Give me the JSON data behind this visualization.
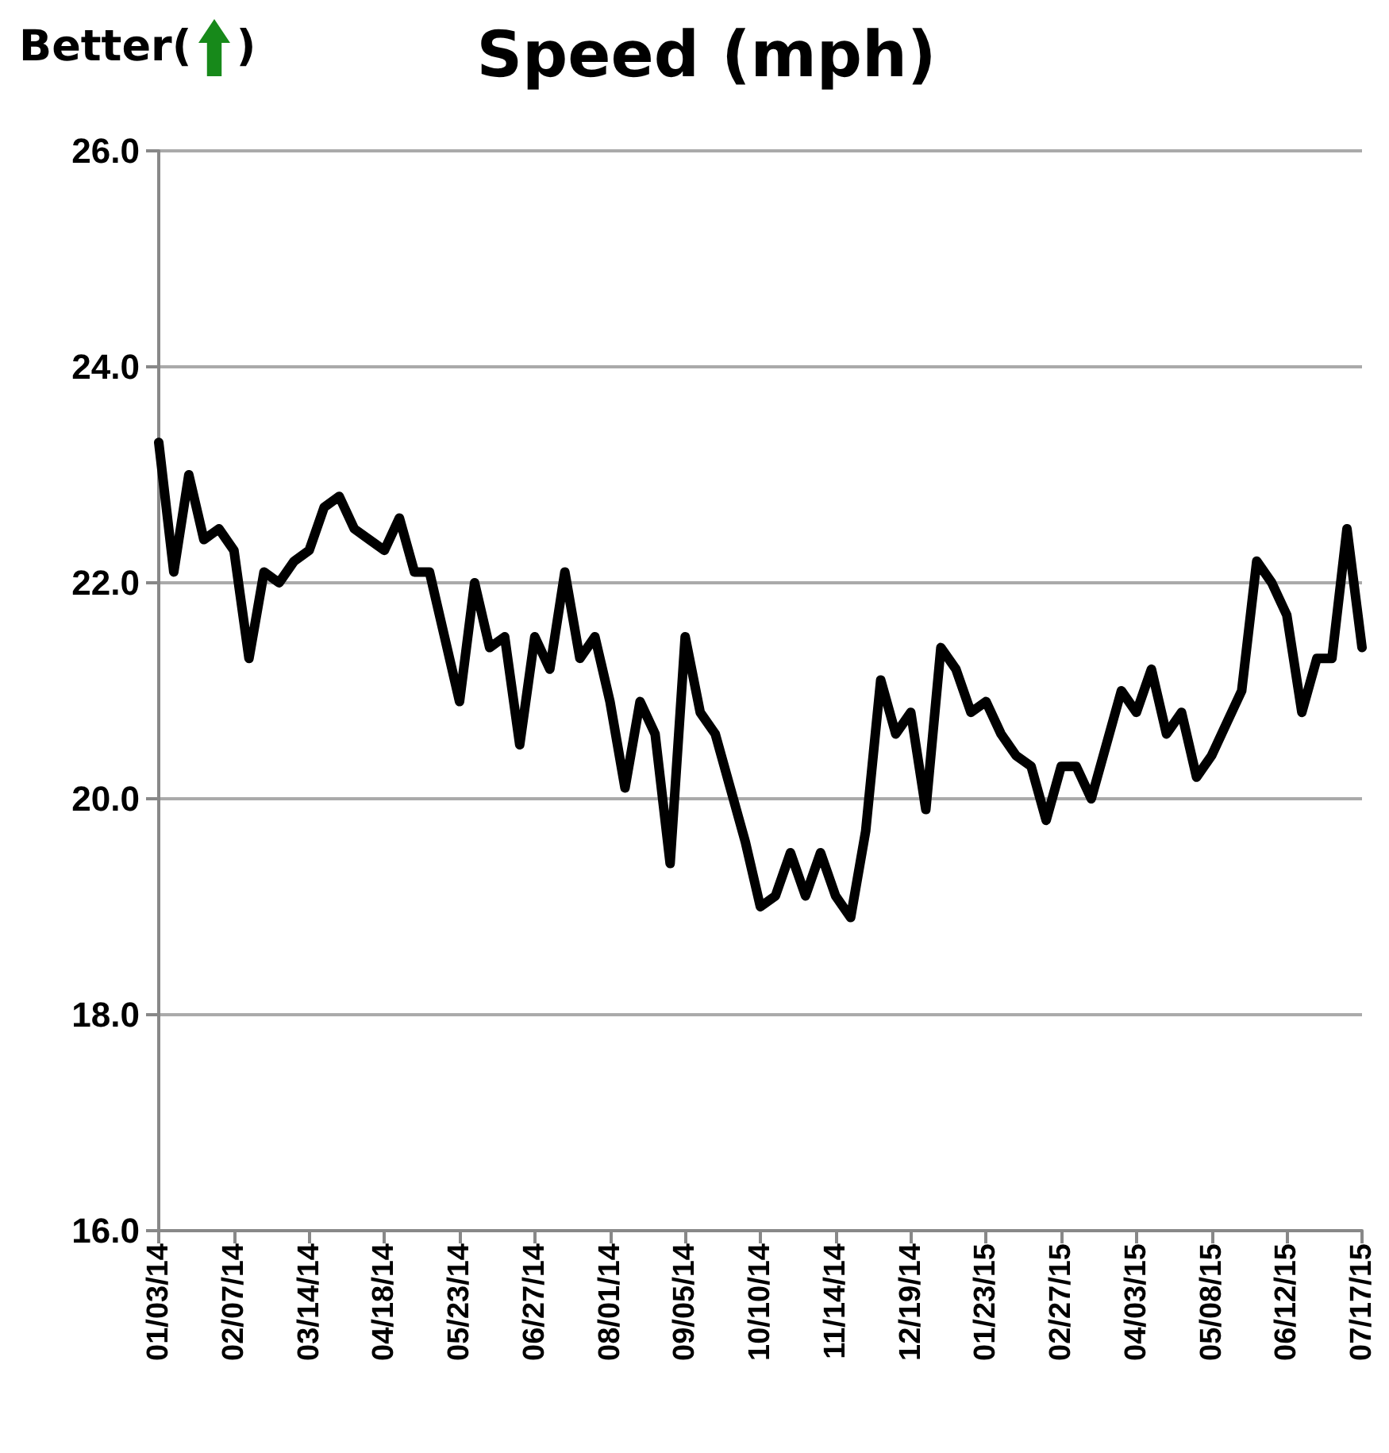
{
  "chart_data": {
    "type": "line",
    "title": "Speed (mph)",
    "annotations": [
      "Better(   )"
    ],
    "categories": [
      "01/03/14",
      null,
      null,
      null,
      null,
      "02/07/14",
      null,
      null,
      null,
      null,
      "03/14/14",
      null,
      null,
      null,
      null,
      "04/18/14",
      null,
      null,
      null,
      null,
      "05/23/14",
      null,
      null,
      null,
      null,
      "06/27/14",
      null,
      null,
      null,
      null,
      "08/01/14",
      null,
      null,
      null,
      null,
      "09/05/14",
      null,
      null,
      null,
      null,
      "10/10/14",
      null,
      null,
      null,
      null,
      "11/14/14",
      null,
      null,
      null,
      null,
      "12/19/14",
      null,
      null,
      null,
      null,
      "01/23/15",
      null,
      null,
      null,
      null,
      "02/27/15",
      null,
      null,
      null,
      null,
      "04/03/15",
      null,
      null,
      null,
      null,
      "05/08/15",
      null,
      null,
      null,
      null,
      "06/12/15",
      null,
      null,
      null,
      null,
      "07/17/15"
    ],
    "series": [
      {
        "color": "#000000",
        "values": [
          23.3,
          22.1,
          23.0,
          22.4,
          22.5,
          22.3,
          21.3,
          22.1,
          22.0,
          22.2,
          22.3,
          22.7,
          22.8,
          22.5,
          22.4,
          22.3,
          22.6,
          22.1,
          22.1,
          21.5,
          20.9,
          22.0,
          21.4,
          21.5,
          20.5,
          21.5,
          21.2,
          22.1,
          21.3,
          21.5,
          20.9,
          20.1,
          20.9,
          20.6,
          19.4,
          21.5,
          20.8,
          20.6,
          20.1,
          19.6,
          19.0,
          19.1,
          19.5,
          19.1,
          19.5,
          19.1,
          18.9,
          19.7,
          21.1,
          20.6,
          20.8,
          19.9,
          21.4,
          21.2,
          20.8,
          20.9,
          20.6,
          20.4,
          20.3,
          19.8,
          20.3,
          20.3,
          20.0,
          20.5,
          21.0,
          20.8,
          21.2,
          20.6,
          20.8,
          20.2,
          20.4,
          20.7,
          21.0,
          22.2,
          22.0,
          21.7,
          20.8,
          21.3,
          21.3,
          22.5,
          21.4
        ]
      }
    ],
    "ylim": [
      16,
      26
    ],
    "yticks": [
      {
        "value": 16,
        "label": "16.0"
      },
      {
        "value": 18,
        "label": "18.0"
      },
      {
        "value": 20,
        "label": "20.0"
      },
      {
        "value": 22,
        "label": "22.0"
      },
      {
        "value": 24,
        "label": "24.0"
      },
      {
        "value": 26,
        "label": "26.0"
      }
    ],
    "grid": "y",
    "marker": "none",
    "line_style": "solid"
  }
}
